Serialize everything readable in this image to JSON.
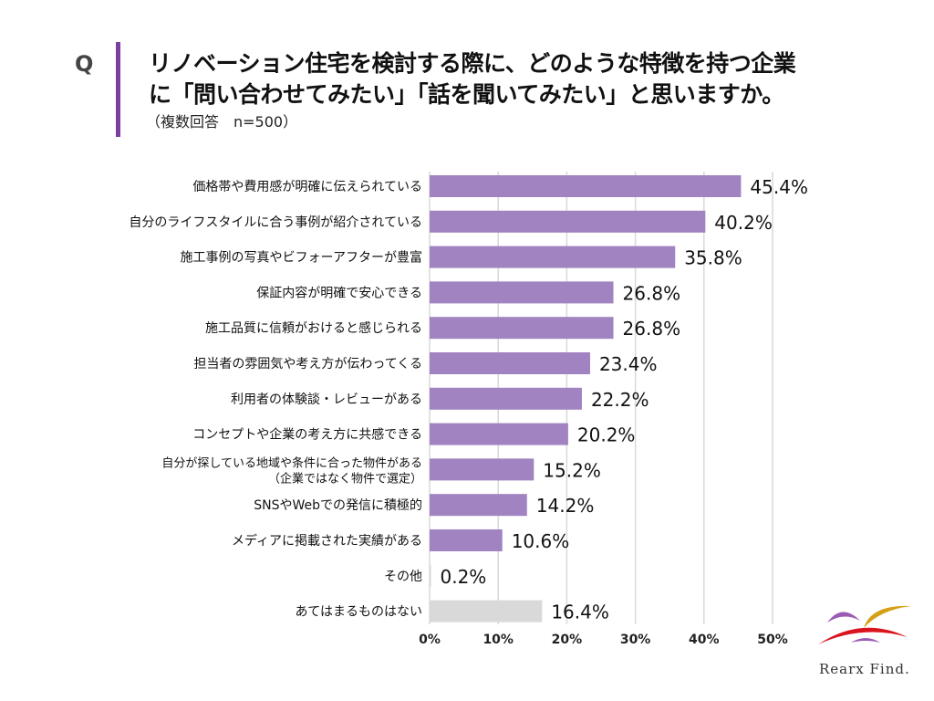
{
  "header": {
    "q_mark": "Q",
    "title_line1": "リノベーション住宅を検討する際に、どのような特徴を持つ企業",
    "title_line2": "に「問い合わせてみたい」「話を聞いてみたい」と思いますか。",
    "subtitle": "（複数回答　n=500）",
    "accent_color": "#7b3fa0"
  },
  "logo": {
    "text": "Rearx Find."
  },
  "chart_data": {
    "type": "bar",
    "orientation": "horizontal",
    "categories": [
      [
        "価格帯や費用感が明確に伝えられている"
      ],
      [
        "自分のライフスタイルに合う事例が紹介されている"
      ],
      [
        "施工事例の写真やビフォーアフターが豊富"
      ],
      [
        "保証内容が明確で安心できる"
      ],
      [
        "施工品質に信頼がおけると感じられる"
      ],
      [
        "担当者の雰囲気や考え方が伝わってくる"
      ],
      [
        "利用者の体験談・レビューがある"
      ],
      [
        "コンセプトや企業の考え方に共感できる"
      ],
      [
        "自分が探している地域や条件に合った物件がある",
        "（企業ではなく物件で選定）"
      ],
      [
        "SNSやWebでの発信に積極的"
      ],
      [
        "メディアに掲載された実績がある"
      ],
      [
        "その他"
      ],
      [
        "あてはまるものはない"
      ]
    ],
    "values": [
      45.4,
      40.2,
      35.8,
      26.8,
      26.8,
      23.4,
      22.2,
      20.2,
      15.2,
      14.2,
      10.6,
      0.2,
      16.4
    ],
    "data_labels": [
      "45.4%",
      "40.2%",
      "35.8%",
      "26.8%",
      "26.8%",
      "23.4%",
      "22.2%",
      "20.2%",
      "15.2%",
      "14.2%",
      "10.6%",
      "0.2%",
      "16.4%"
    ],
    "bar_colors": [
      "#a083c0",
      "#a083c0",
      "#a083c0",
      "#a083c0",
      "#a083c0",
      "#a083c0",
      "#a083c0",
      "#a083c0",
      "#a083c0",
      "#a083c0",
      "#a083c0",
      "#d9d9d9",
      "#d9d9d9"
    ],
    "x_ticks": [
      "0%",
      "10%",
      "20%",
      "30%",
      "40%",
      "50%"
    ],
    "xlim": [
      0,
      50
    ],
    "grid": true
  }
}
